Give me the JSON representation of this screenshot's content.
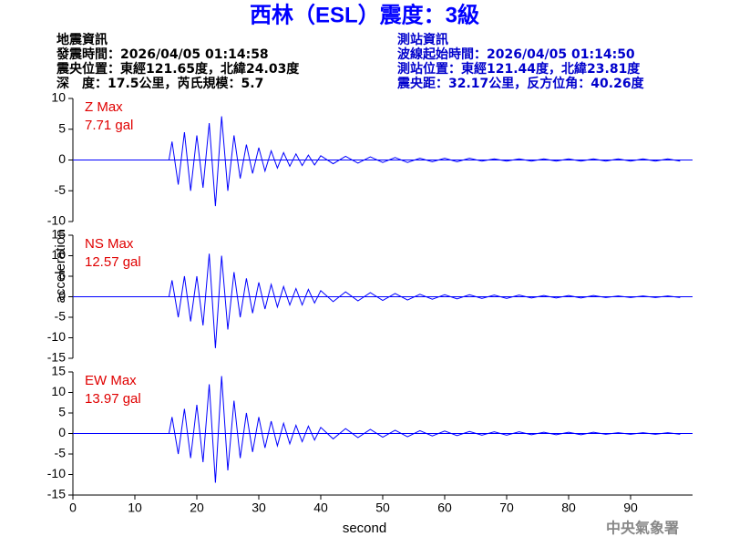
{
  "header": {
    "title": "西林（ESL）震度：3級",
    "left": [
      "地震資訊",
      "發震時間：2026/04/05 01:14:58",
      "震央位置：東經121.65度，北緯24.03度",
      "深　度：17.5公里，芮氏規模：5.7"
    ],
    "right": [
      "測站資訊",
      "波線起始時間：2026/04/05 01:14:50",
      "測站位置：東經121.44度，北緯23.81度",
      "震央距：32.17公里，反方位角：40.26度"
    ]
  },
  "axes": {
    "xlabel": "second",
    "ylabel": "acceleration"
  },
  "footer": "中央氣象署",
  "chart_data": [
    {
      "type": "line",
      "annotation": [
        "Z Max",
        "7.71 gal"
      ],
      "ylim": [
        -10,
        10
      ],
      "yticks": [
        -10,
        -5,
        0,
        5,
        10
      ],
      "xlim": [
        0,
        100
      ],
      "x": [
        0,
        15.5,
        16,
        17,
        18,
        19,
        20,
        21,
        22,
        23,
        24,
        25,
        26,
        27,
        28,
        29,
        30,
        31,
        32,
        33,
        34,
        35,
        36,
        37,
        38,
        39,
        40,
        42,
        44,
        46,
        48,
        50,
        52,
        54,
        56,
        58,
        60,
        62,
        64,
        66,
        68,
        70,
        72,
        74,
        76,
        78,
        80,
        82,
        84,
        86,
        88,
        90,
        92,
        94,
        96,
        98
      ],
      "series": [
        {
          "name": "Z",
          "color": "#0000ff",
          "values": [
            0,
            0,
            3,
            -4,
            4.5,
            -5,
            4,
            -4.5,
            6,
            -7.5,
            7.1,
            -5,
            4,
            -3,
            2.5,
            -2.2,
            2,
            -1.8,
            1.5,
            -1.3,
            1.2,
            -1,
            1,
            -0.9,
            0.8,
            -0.8,
            0.7,
            -0.6,
            0.6,
            -0.5,
            0.5,
            -0.4,
            0.4,
            -0.4,
            0.3,
            -0.3,
            0.3,
            -0.3,
            0.3,
            -0.2,
            0.2,
            -0.2,
            0.2,
            -0.2,
            0.2,
            -0.2,
            0.2,
            -0.2,
            0.2,
            -0.2,
            0.2,
            -0.2,
            0.2,
            -0.2,
            0.2,
            -0.2
          ]
        }
      ]
    },
    {
      "type": "line",
      "annotation": [
        "NS Max",
        "12.57 gal"
      ],
      "ylim": [
        -15,
        15
      ],
      "yticks": [
        -15,
        -10,
        -5,
        0,
        5,
        10,
        15
      ],
      "xlim": [
        0,
        100
      ],
      "x": [
        0,
        15.5,
        16,
        17,
        18,
        19,
        20,
        21,
        22,
        23,
        24,
        25,
        26,
        27,
        28,
        29,
        30,
        31,
        32,
        33,
        34,
        35,
        36,
        37,
        38,
        39,
        40,
        42,
        44,
        46,
        48,
        50,
        52,
        54,
        56,
        58,
        60,
        62,
        64,
        66,
        68,
        70,
        72,
        74,
        76,
        78,
        80,
        82,
        84,
        86,
        88,
        90,
        92,
        94,
        96,
        98
      ],
      "series": [
        {
          "name": "NS",
          "color": "#0000ff",
          "values": [
            0,
            0,
            4,
            -5,
            5,
            -6,
            5,
            -7,
            10.5,
            -12.5,
            10,
            -8,
            6,
            -5,
            4.5,
            -4,
            3.5,
            -3,
            3,
            -2.5,
            2.5,
            -2,
            2,
            -2,
            1.8,
            -1.5,
            1.5,
            -1.2,
            1.2,
            -1,
            1,
            -0.9,
            0.8,
            -0.8,
            0.6,
            -0.6,
            0.5,
            -0.5,
            0.5,
            -0.4,
            0.4,
            -0.4,
            0.4,
            -0.3,
            0.3,
            -0.3,
            0.3,
            -0.3,
            0.3,
            -0.2,
            0.2,
            -0.2,
            0.2,
            -0.2,
            0.2,
            -0.2
          ]
        }
      ]
    },
    {
      "type": "line",
      "annotation": [
        "EW Max",
        "13.97 gal"
      ],
      "ylim": [
        -15,
        15
      ],
      "yticks": [
        -15,
        -10,
        -5,
        0,
        5,
        10,
        15
      ],
      "xlim": [
        0,
        100
      ],
      "xticks": [
        0,
        10,
        20,
        30,
        40,
        50,
        60,
        70,
        80,
        90
      ],
      "x": [
        0,
        15.5,
        16,
        17,
        18,
        19,
        20,
        21,
        22,
        23,
        24,
        25,
        26,
        27,
        28,
        29,
        30,
        31,
        32,
        33,
        34,
        35,
        36,
        37,
        38,
        39,
        40,
        42,
        44,
        46,
        48,
        50,
        52,
        54,
        56,
        58,
        60,
        62,
        64,
        66,
        68,
        70,
        72,
        74,
        76,
        78,
        80,
        82,
        84,
        86,
        88,
        90,
        92,
        94,
        96,
        98
      ],
      "series": [
        {
          "name": "EW",
          "color": "#0000ff",
          "values": [
            0,
            0,
            4,
            -5,
            6,
            -6,
            7,
            -7,
            12,
            -12,
            14,
            -9,
            8,
            -6,
            5,
            -4.5,
            4,
            -3.5,
            3,
            -3,
            2.5,
            -2.5,
            2,
            -2,
            1.8,
            -1.6,
            1.5,
            -1.3,
            1.2,
            -1,
            1,
            -0.9,
            0.8,
            -0.8,
            0.7,
            -0.6,
            0.6,
            -0.5,
            0.5,
            -0.4,
            0.4,
            -0.4,
            0.4,
            -0.3,
            0.3,
            -0.3,
            0.3,
            -0.3,
            0.3,
            -0.2,
            0.2,
            -0.2,
            0.2,
            -0.2,
            0.2,
            -0.2
          ]
        }
      ]
    }
  ]
}
